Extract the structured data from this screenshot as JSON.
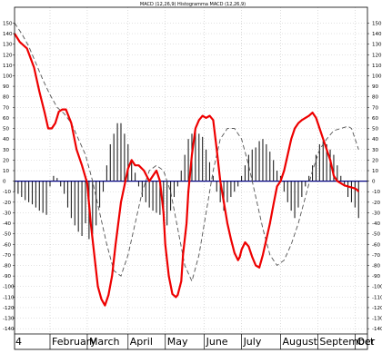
{
  "chart_data": {
    "type": "line",
    "title": "MACD (12,26,9) Histogramma MACD (12,26,9)",
    "ylim": [
      -145,
      165
    ],
    "ytick_values": [
      150,
      140,
      130,
      120,
      110,
      100,
      90,
      80,
      70,
      60,
      50,
      40,
      30,
      20,
      10,
      0,
      -10,
      -20,
      -30,
      -40,
      -50,
      -60,
      -70,
      -80,
      -90,
      -100,
      -110,
      -120,
      -130,
      -140
    ],
    "ytick_labels": [
      "150",
      "140",
      "130",
      "120",
      "110",
      "100",
      "90",
      "80",
      "70",
      "60",
      "50",
      "40",
      "30",
      "20",
      "10",
      "0",
      "-10",
      "-20",
      "-30",
      "-40",
      "-50",
      "-60",
      "-70",
      "-80",
      "-90",
      "-100",
      "-110",
      "-120",
      "-130",
      "-140"
    ],
    "x_start_label": "4",
    "months": [
      {
        "label": "February",
        "start": 20,
        "end": 41
      },
      {
        "label": "March",
        "start": 41,
        "end": 64
      },
      {
        "label": "April",
        "start": 64,
        "end": 85
      },
      {
        "label": "May",
        "start": 85,
        "end": 107
      },
      {
        "label": "June",
        "start": 107,
        "end": 128
      },
      {
        "label": "July",
        "start": 128,
        "end": 150
      },
      {
        "label": "August",
        "start": 150,
        "end": 171
      },
      {
        "label": "September",
        "start": 171,
        "end": 192
      },
      {
        "label": "Oct",
        "start": 192,
        "end": 199
      }
    ],
    "x_range": [
      0,
      199
    ],
    "colors": {
      "macd": "#ee0000",
      "signal": "#555555",
      "histogram": "#222222",
      "zero": "#000080",
      "grid": "#b8b8b8"
    },
    "series": [
      {
        "kind": "macd",
        "x": [
          0,
          3,
          7,
          11,
          14,
          17,
          19,
          21,
          23,
          25,
          27,
          29,
          32,
          35,
          38,
          41,
          43,
          45,
          47,
          49,
          51,
          53,
          55,
          57,
          60,
          64,
          66,
          68,
          70,
          73,
          76,
          78,
          80,
          82,
          84,
          85,
          87,
          89,
          91,
          92,
          94,
          95,
          97,
          98,
          100,
          102,
          104,
          106,
          108,
          110,
          112,
          114,
          116,
          118,
          120,
          122,
          124,
          126,
          127,
          128,
          130,
          132,
          134,
          136,
          138,
          140,
          142,
          144,
          146,
          148,
          150,
          152,
          154,
          156,
          158,
          160,
          162,
          164,
          166,
          168,
          170,
          172,
          174,
          176,
          178,
          180,
          182,
          184,
          186,
          188,
          190,
          192,
          193,
          194
        ],
        "values": [
          140,
          132,
          126,
          108,
          85,
          65,
          50,
          50,
          55,
          66,
          68,
          68,
          55,
          30,
          15,
          -2,
          -40,
          -70,
          -100,
          -112,
          -118,
          -108,
          -90,
          -60,
          -20,
          12,
          20,
          15,
          15,
          10,
          0,
          5,
          10,
          0,
          -30,
          -60,
          -90,
          -107,
          -110,
          -108,
          -95,
          -70,
          -40,
          -10,
          25,
          50,
          58,
          62,
          60,
          62,
          58,
          30,
          0,
          -20,
          -40,
          -55,
          -68,
          -75,
          -72,
          -65,
          -58,
          -62,
          -72,
          -80,
          -82,
          -70,
          -55,
          -40,
          -22,
          -5,
          0,
          10,
          25,
          40,
          50,
          55,
          58,
          60,
          62,
          65,
          60,
          50,
          40,
          30,
          20,
          5,
          0,
          -2,
          -4,
          -5,
          -6,
          -7,
          -8,
          -10
        ]
      },
      {
        "kind": "signal",
        "x": [
          0,
          4,
          8,
          12,
          16,
          20,
          24,
          28,
          32,
          36,
          40,
          44,
          48,
          52,
          56,
          60,
          64,
          68,
          72,
          76,
          80,
          84,
          88,
          92,
          96,
          100,
          104,
          108,
          112,
          116,
          120,
          124,
          128,
          132,
          136,
          140,
          144,
          148,
          152,
          156,
          160,
          164,
          168,
          172,
          176,
          180,
          184,
          188,
          190,
          192,
          194
        ],
        "values": [
          150,
          140,
          128,
          112,
          96,
          82,
          70,
          64,
          55,
          40,
          25,
          0,
          -30,
          -60,
          -85,
          -90,
          -70,
          -40,
          -10,
          10,
          15,
          10,
          -10,
          -45,
          -80,
          -95,
          -70,
          -30,
          10,
          40,
          50,
          50,
          40,
          15,
          -15,
          -45,
          -70,
          -80,
          -75,
          -60,
          -40,
          -15,
          10,
          30,
          40,
          48,
          50,
          52,
          50,
          40,
          30
        ]
      },
      {
        "kind": "histogram",
        "x": [
          0,
          2,
          4,
          6,
          8,
          10,
          12,
          14,
          16,
          18,
          20,
          22,
          24,
          26,
          28,
          30,
          32,
          34,
          36,
          38,
          40,
          42,
          44,
          46,
          48,
          50,
          52,
          54,
          56,
          58,
          60,
          62,
          64,
          66,
          68,
          70,
          72,
          74,
          76,
          78,
          80,
          82,
          84,
          86,
          88,
          90,
          92,
          94,
          96,
          98,
          100,
          102,
          104,
          106,
          108,
          110,
          112,
          114,
          116,
          118,
          120,
          122,
          124,
          126,
          128,
          130,
          132,
          134,
          136,
          138,
          140,
          142,
          144,
          146,
          148,
          150,
          152,
          154,
          156,
          158,
          160,
          162,
          164,
          166,
          168,
          170,
          172,
          174,
          176,
          178,
          180,
          182,
          184,
          186,
          188,
          190,
          192,
          194
        ],
        "values": [
          -10,
          -12,
          -15,
          -18,
          -20,
          -22,
          -25,
          -28,
          -30,
          -32,
          -5,
          5,
          3,
          -5,
          -12,
          -25,
          -35,
          -42,
          -48,
          -52,
          -40,
          -55,
          -50,
          -42,
          -25,
          -10,
          15,
          35,
          45,
          55,
          55,
          45,
          35,
          20,
          8,
          -5,
          -15,
          -20,
          -25,
          -28,
          -30,
          -32,
          -38,
          -42,
          -28,
          -15,
          -5,
          10,
          25,
          40,
          45,
          50,
          45,
          42,
          30,
          18,
          5,
          -10,
          -20,
          -28,
          -20,
          -15,
          -10,
          -5,
          5,
          15,
          25,
          30,
          32,
          38,
          40,
          35,
          28,
          20,
          10,
          5,
          -10,
          -20,
          -28,
          -35,
          -25,
          -15,
          -5,
          5,
          15,
          25,
          35,
          38,
          35,
          30,
          25,
          15,
          5,
          -5,
          -15,
          -20,
          -25,
          -35
        ]
      }
    ]
  }
}
